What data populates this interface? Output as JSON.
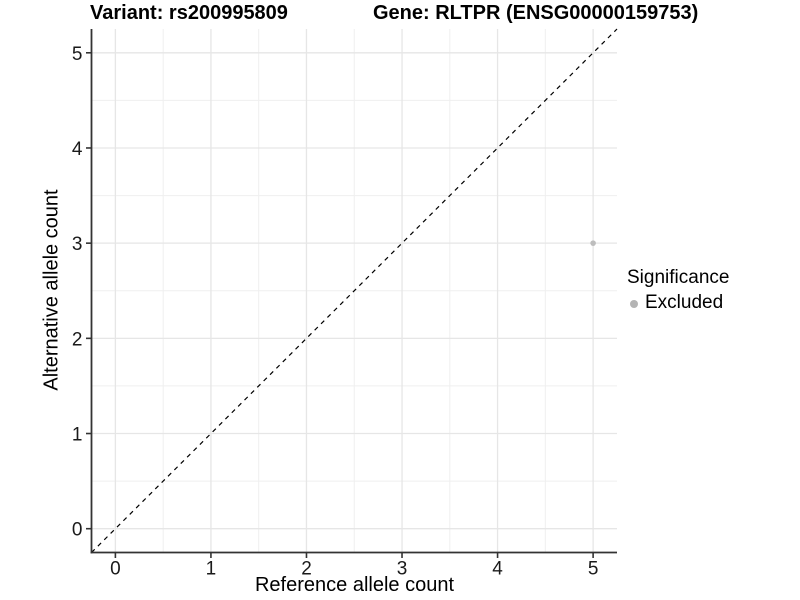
{
  "chart_data": {
    "type": "scatter",
    "title_left": "Variant: rs200995809",
    "title_right": "Gene: RLTPR (ENSG00000159753)",
    "xlabel": "Reference allele count",
    "ylabel": "Alternative allele count",
    "xlim": [
      -0.25,
      5.25
    ],
    "ylim": [
      -0.25,
      5.25
    ],
    "xticks": [
      0,
      1,
      2,
      3,
      4,
      5
    ],
    "yticks": [
      0,
      1,
      2,
      3,
      4,
      5
    ],
    "grid": {
      "major": true,
      "minor": true
    },
    "points": [
      {
        "x": 5,
        "y": 3,
        "significance": "Excluded"
      }
    ],
    "point_color": "#bdbdbd",
    "point_radius": 2.8,
    "identity_line": {
      "slope": 1,
      "intercept": 0,
      "style": "dashed",
      "color": "#000000"
    },
    "legend": {
      "title": "Significance",
      "position": "right",
      "entries": [
        {
          "label": "Excluded",
          "color": "#b4b4b4"
        }
      ]
    },
    "colors": {
      "background": "#ffffff",
      "grid_major": "#e6e6e6",
      "grid_minor": "#efefef",
      "axis_line": "#333333",
      "tick_label": "#1a1a1a",
      "title": "#000000"
    }
  }
}
